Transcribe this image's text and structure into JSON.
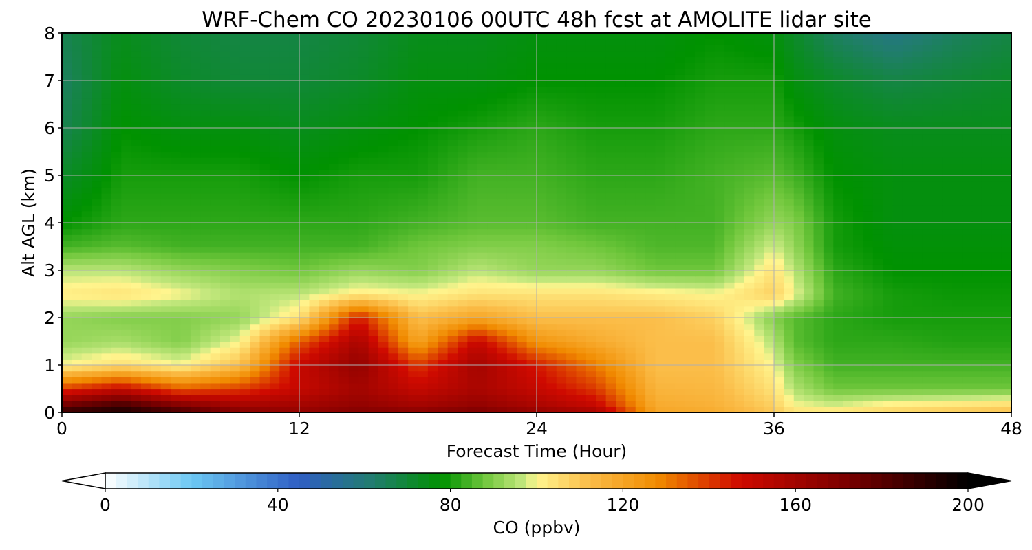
{
  "chart_data": {
    "type": "heatmap",
    "title": "WRF-Chem CO  20230106 00UTC 48h fcst at AMOLITE lidar site",
    "xlabel": "Forecast Time (Hour)",
    "ylabel": "Alt AGL (km)",
    "xlim": [
      0,
      48
    ],
    "ylim": [
      0,
      8
    ],
    "x_ticks": [
      0,
      12,
      24,
      36,
      48
    ],
    "y_ticks": [
      0,
      1,
      2,
      3,
      4,
      5,
      6,
      7,
      8
    ],
    "grid": true,
    "x": [
      0,
      3,
      6,
      9,
      12,
      15,
      18,
      21,
      24,
      27,
      30,
      33,
      36,
      37,
      39,
      42,
      45,
      48
    ],
    "y": [
      0,
      0.15,
      0.5,
      1.0,
      1.5,
      2.0,
      2.5,
      3.0,
      3.5,
      4.0,
      5.0,
      6.0,
      7.0,
      8.0
    ],
    "z": [
      [
        190,
        195,
        185,
        170,
        165,
        170,
        168,
        172,
        165,
        160,
        120,
        118,
        110,
        105,
        105,
        108,
        110,
        112
      ],
      [
        175,
        185,
        170,
        160,
        160,
        165,
        160,
        165,
        158,
        150,
        118,
        116,
        108,
        100,
        98,
        102,
        104,
        106
      ],
      [
        140,
        150,
        135,
        140,
        150,
        160,
        150,
        158,
        150,
        140,
        115,
        114,
        104,
        95,
        88,
        88,
        88,
        88
      ],
      [
        100,
        105,
        100,
        112,
        150,
        165,
        140,
        160,
        145,
        130,
        112,
        112,
        100,
        90,
        84,
        84,
        84,
        84
      ],
      [
        92,
        94,
        90,
        100,
        135,
        158,
        120,
        150,
        125,
        118,
        112,
        112,
        95,
        86,
        82,
        82,
        81,
        81
      ],
      [
        92,
        90,
        90,
        92,
        104,
        145,
        112,
        120,
        112,
        112,
        112,
        108,
        90,
        86,
        82,
        80,
        80,
        80
      ],
      [
        102,
        104,
        100,
        95,
        96,
        102,
        100,
        104,
        104,
        104,
        102,
        100,
        108,
        100,
        84,
        80,
        79,
        79
      ],
      [
        96,
        96,
        92,
        90,
        88,
        92,
        90,
        96,
        92,
        92,
        88,
        88,
        104,
        96,
        82,
        78,
        78,
        78
      ],
      [
        84,
        86,
        84,
        84,
        84,
        84,
        88,
        90,
        90,
        88,
        85,
        85,
        98,
        92,
        80,
        77,
        77,
        77
      ],
      [
        78,
        82,
        82,
        82,
        82,
        82,
        84,
        86,
        86,
        84,
        84,
        84,
        92,
        90,
        80,
        76,
        76,
        76
      ],
      [
        72,
        80,
        80,
        80,
        78,
        80,
        80,
        84,
        84,
        82,
        82,
        84,
        86,
        84,
        78,
        76,
        76,
        76
      ],
      [
        66,
        78,
        76,
        76,
        74,
        76,
        78,
        80,
        82,
        80,
        80,
        82,
        82,
        80,
        76,
        74,
        74,
        74
      ],
      [
        64,
        76,
        72,
        70,
        70,
        72,
        76,
        76,
        78,
        78,
        78,
        80,
        80,
        76,
        72,
        68,
        70,
        72
      ],
      [
        66,
        74,
        70,
        68,
        68,
        70,
        74,
        74,
        76,
        76,
        76,
        78,
        76,
        72,
        64,
        58,
        64,
        68
      ]
    ],
    "colorbar": {
      "label": "CO  (ppbv)",
      "vmin": 0,
      "vmax": 200,
      "ticks": [
        0,
        40,
        80,
        120,
        160,
        200
      ],
      "extend": "both",
      "stops": [
        {
          "v": 0,
          "color": "#ffffff"
        },
        {
          "v": 20,
          "color": "#6cc8f3"
        },
        {
          "v": 45,
          "color": "#2f5ec4"
        },
        {
          "v": 62,
          "color": "#217d6e"
        },
        {
          "v": 78,
          "color": "#009200"
        },
        {
          "v": 88,
          "color": "#70c73c"
        },
        {
          "v": 97,
          "color": "#c4e87e"
        },
        {
          "v": 100,
          "color": "#fff58e"
        },
        {
          "v": 112,
          "color": "#fbbe4a"
        },
        {
          "v": 128,
          "color": "#f18b00"
        },
        {
          "v": 147,
          "color": "#cf0a00"
        },
        {
          "v": 172,
          "color": "#7a0000"
        },
        {
          "v": 200,
          "color": "#000000"
        }
      ]
    }
  }
}
